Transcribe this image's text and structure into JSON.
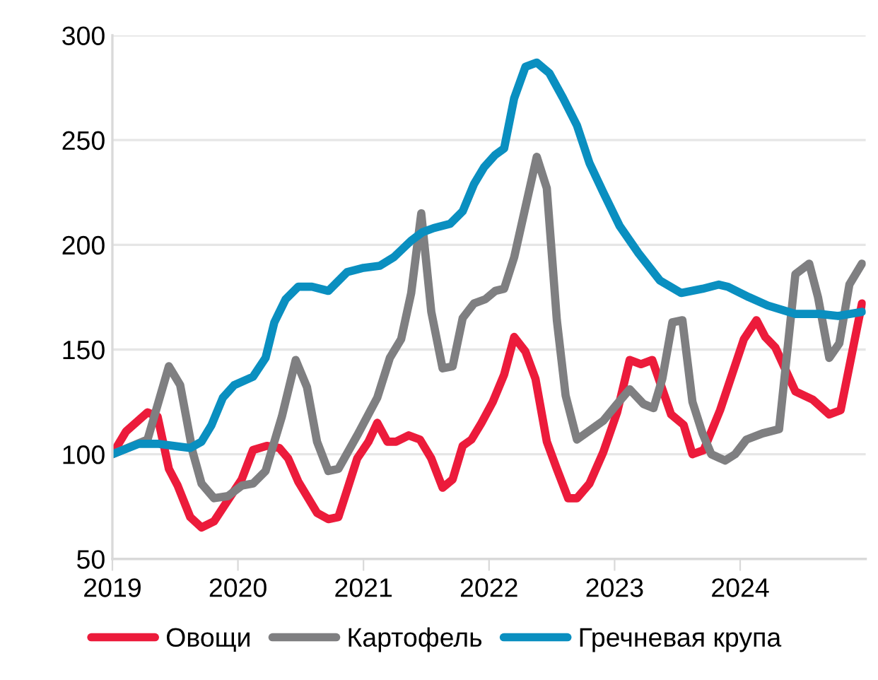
{
  "chart_data": {
    "type": "line",
    "xlim": [
      2019,
      2025
    ],
    "xticks": [
      2019,
      2020,
      2021,
      2022,
      2023,
      2024
    ],
    "ylim": [
      50,
      300
    ],
    "yticks": [
      50,
      100,
      150,
      200,
      250,
      300
    ],
    "grid": "y",
    "legend": "bottom",
    "marker": "none",
    "line_style": "solid",
    "series": [
      {
        "name": "Овощи",
        "color": "#ec1b3b",
        "x": [
          2019.0,
          2019.11,
          2019.28,
          2019.36,
          2019.45,
          2019.52,
          2019.62,
          2019.71,
          2019.81,
          2019.92,
          2020.03,
          2020.12,
          2020.23,
          2020.33,
          2020.4,
          2020.48,
          2020.63,
          2020.72,
          2020.8,
          2020.87,
          2020.95,
          2021.04,
          2021.11,
          2021.19,
          2021.26,
          2021.36,
          2021.45,
          2021.54,
          2021.63,
          2021.71,
          2021.79,
          2021.86,
          2021.94,
          2022.03,
          2022.12,
          2022.2,
          2022.29,
          2022.37,
          2022.46,
          2022.54,
          2022.63,
          2022.7,
          2022.8,
          2022.91,
          2023.02,
          2023.12,
          2023.21,
          2023.3,
          2023.45,
          2023.55,
          2023.62,
          2023.71,
          2023.84,
          2024.03,
          2024.13,
          2024.2,
          2024.28,
          2024.44,
          2024.58,
          2024.71,
          2024.8,
          2024.97
        ],
        "values": [
          100,
          111,
          120,
          118,
          93,
          85,
          70,
          65,
          68,
          78,
          88,
          102,
          104,
          103,
          98,
          87,
          72,
          69,
          70,
          83,
          98,
          106,
          115,
          106,
          106,
          109,
          107,
          98,
          84,
          88,
          104,
          107,
          115,
          125,
          138,
          156,
          149,
          136,
          106,
          93,
          79,
          79,
          86,
          101,
          120,
          145,
          143,
          145,
          119,
          114,
          100,
          102,
          121,
          155,
          164,
          156,
          151,
          130,
          126,
          119,
          121,
          172
        ]
      },
      {
        "name": "Картофель",
        "color": "#7f7f81",
        "x": [
          2019.0,
          2019.28,
          2019.45,
          2019.54,
          2019.64,
          2019.71,
          2019.81,
          2019.92,
          2020.03,
          2020.12,
          2020.22,
          2020.35,
          2020.46,
          2020.55,
          2020.63,
          2020.72,
          2020.8,
          2020.95,
          2021.11,
          2021.21,
          2021.3,
          2021.38,
          2021.46,
          2021.54,
          2021.63,
          2021.71,
          2021.79,
          2021.88,
          2021.97,
          2022.05,
          2022.12,
          2022.2,
          2022.38,
          2022.46,
          2022.54,
          2022.61,
          2022.7,
          2022.91,
          2023.02,
          2023.12,
          2023.23,
          2023.31,
          2023.38,
          2023.46,
          2023.54,
          2023.62,
          2023.7,
          2023.77,
          2023.88,
          2023.96,
          2024.05,
          2024.18,
          2024.31,
          2024.44,
          2024.55,
          2024.62,
          2024.71,
          2024.79,
          2024.87,
          2024.97
        ],
        "values": [
          100,
          107,
          142,
          133,
          101,
          86,
          79,
          80,
          85,
          86,
          92,
          118,
          145,
          132,
          106,
          92,
          93,
          109,
          127,
          146,
          155,
          177,
          215,
          168,
          141,
          142,
          165,
          172,
          174,
          178,
          179,
          194,
          242,
          227,
          164,
          128,
          107,
          116,
          124,
          131,
          124,
          122,
          136,
          163,
          164,
          125,
          110,
          100,
          97,
          100,
          107,
          110,
          112,
          186,
          191,
          175,
          146,
          153,
          181,
          191
        ]
      },
      {
        "name": "Гречневая крупа",
        "color": "#0a8fc0",
        "x": [
          2019.0,
          2019.21,
          2019.36,
          2019.62,
          2019.71,
          2019.79,
          2019.88,
          2019.97,
          2020.12,
          2020.22,
          2020.29,
          2020.38,
          2020.48,
          2020.59,
          2020.72,
          2020.87,
          2021.0,
          2021.13,
          2021.24,
          2021.38,
          2021.47,
          2021.56,
          2021.69,
          2021.79,
          2021.88,
          2021.96,
          2022.05,
          2022.12,
          2022.2,
          2022.29,
          2022.38,
          2022.48,
          2022.59,
          2022.7,
          2022.8,
          2022.91,
          2023.04,
          2023.19,
          2023.36,
          2023.53,
          2023.7,
          2023.83,
          2023.9,
          2024.07,
          2024.22,
          2024.44,
          2024.63,
          2024.78,
          2024.97
        ],
        "values": [
          100,
          105,
          105,
          103,
          106,
          114,
          127,
          133,
          137,
          146,
          163,
          174,
          180,
          180,
          178,
          187,
          189,
          190,
          194,
          202,
          206,
          208,
          210,
          216,
          229,
          237,
          243,
          246,
          270,
          285,
          287,
          282,
          270,
          257,
          239,
          225,
          209,
          196,
          183,
          177,
          179,
          181,
          180,
          175,
          171,
          167,
          167,
          166,
          168
        ]
      }
    ]
  }
}
